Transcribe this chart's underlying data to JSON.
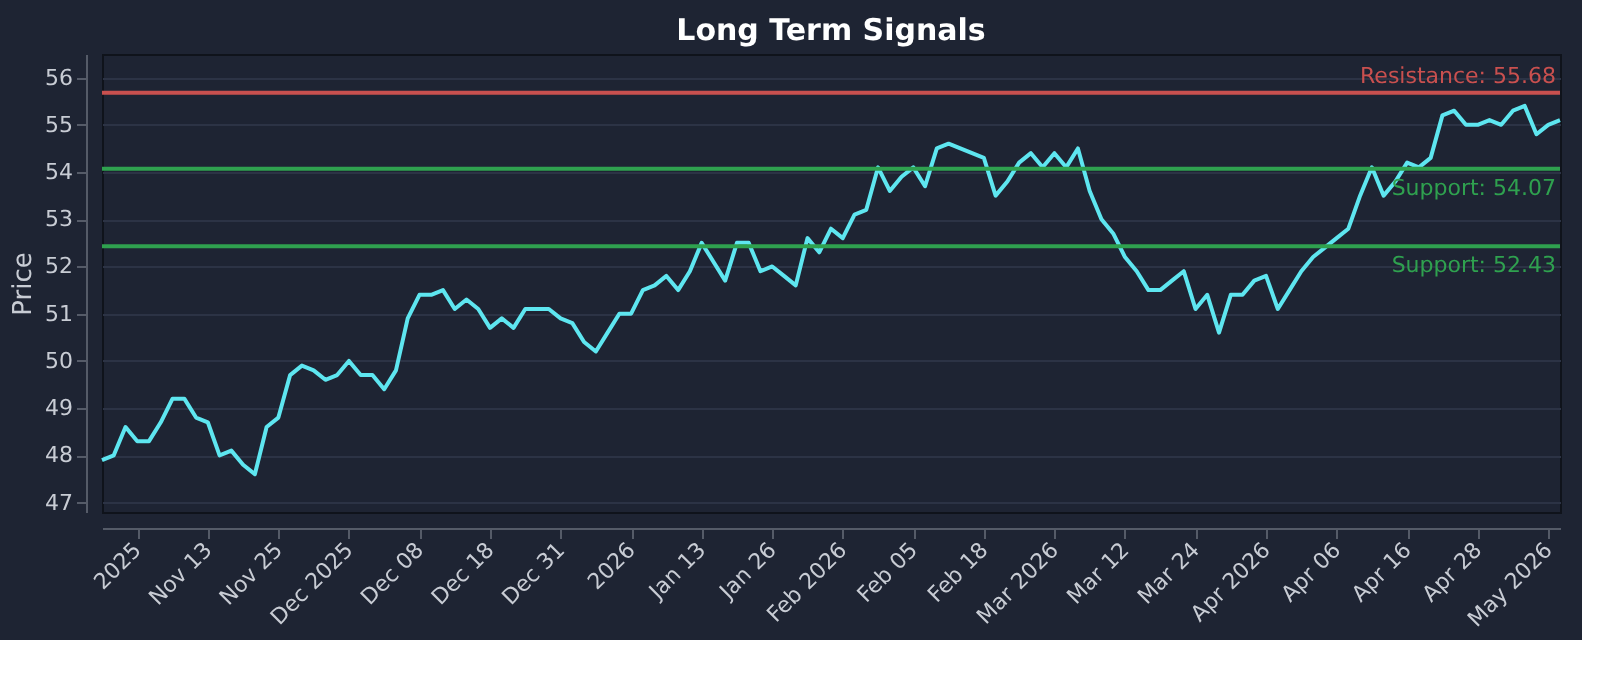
{
  "chart_data": {
    "type": "line",
    "title": "Long Term Signals",
    "ylabel": "Price",
    "categories": [
      null,
      null,
      null,
      "2025",
      null,
      null,
      null,
      null,
      null,
      "Nov 13",
      null,
      null,
      null,
      null,
      null,
      "Nov 25",
      null,
      null,
      null,
      null,
      null,
      "Dec 2025",
      null,
      null,
      null,
      null,
      null,
      "Dec 08",
      null,
      null,
      null,
      null,
      null,
      "Dec 18",
      null,
      null,
      null,
      null,
      null,
      "Dec 31",
      null,
      null,
      null,
      null,
      null,
      "2026",
      null,
      null,
      null,
      null,
      null,
      "Jan 13",
      null,
      null,
      null,
      null,
      null,
      "Jan 26",
      null,
      null,
      null,
      null,
      null,
      "Feb 2026",
      null,
      null,
      null,
      null,
      null,
      "Feb 05",
      null,
      null,
      null,
      null,
      null,
      "Feb 18",
      null,
      null,
      null,
      null,
      null,
      "Mar 2026",
      null,
      null,
      null,
      null,
      null,
      "Mar 12",
      null,
      null,
      null,
      null,
      null,
      "Mar 24",
      null,
      null,
      null,
      null,
      null,
      "Apr 2026",
      null,
      null,
      null,
      null,
      null,
      "Apr 06",
      null,
      null,
      null,
      null,
      null,
      "Apr 16",
      null,
      null,
      null,
      null,
      null,
      "Apr 28",
      null,
      null,
      null,
      null,
      null,
      "May 2026",
      null
    ],
    "series": [
      {
        "color": "#5ee6f0",
        "values": [
          47.9,
          48.0,
          48.6,
          48.3,
          48.3,
          48.7,
          49.2,
          49.2,
          48.8,
          48.7,
          48.0,
          48.1,
          47.8,
          47.6,
          48.6,
          48.8,
          49.7,
          49.9,
          49.8,
          49.6,
          49.7,
          50.0,
          49.7,
          49.7,
          49.4,
          49.8,
          50.9,
          51.4,
          51.4,
          51.5,
          51.1,
          51.3,
          51.1,
          50.7,
          50.9,
          50.7,
          51.1,
          51.1,
          51.1,
          50.9,
          50.8,
          50.4,
          50.2,
          50.6,
          51.0,
          51.0,
          51.5,
          51.6,
          51.8,
          51.5,
          51.9,
          52.5,
          52.1,
          51.7,
          52.5,
          52.5,
          51.9,
          52.0,
          51.8,
          51.6,
          52.6,
          52.3,
          52.8,
          52.6,
          53.1,
          53.2,
          54.1,
          53.6,
          53.9,
          54.1,
          53.7,
          54.5,
          54.6,
          54.5,
          54.4,
          54.3,
          53.5,
          53.8,
          54.2,
          54.4,
          54.1,
          54.4,
          54.1,
          54.5,
          53.6,
          53.0,
          52.7,
          52.2,
          51.9,
          51.5,
          51.5,
          51.7,
          51.9,
          51.1,
          51.4,
          50.6,
          51.4,
          51.4,
          51.7,
          51.8,
          51.1,
          51.5,
          51.9,
          52.2,
          52.4,
          52.6,
          52.8,
          53.5,
          54.1,
          53.5,
          53.8,
          54.2,
          54.1,
          54.3,
          55.2,
          55.3,
          55.0,
          55.0,
          55.1,
          55.0,
          55.3,
          55.4,
          54.8,
          55.0,
          55.1
        ]
      }
    ],
    "ylim": [
      46.8,
      56.5
    ],
    "yticks": [
      47,
      48,
      49,
      50,
      51,
      52,
      53,
      54,
      55,
      56
    ],
    "grid": "y",
    "line_style": "solid",
    "marker": "none",
    "ref_lines": [
      {
        "axis": "y",
        "value": 55.68,
        "label": "Resistance: 55.68",
        "color": "#c9504f"
      },
      {
        "axis": "y",
        "value": 54.07,
        "label": "Support: 54.07",
        "color": "#2fa14f"
      },
      {
        "axis": "y",
        "value": 52.43,
        "label": "Support: 52.43",
        "color": "#2fa14f"
      }
    ]
  }
}
